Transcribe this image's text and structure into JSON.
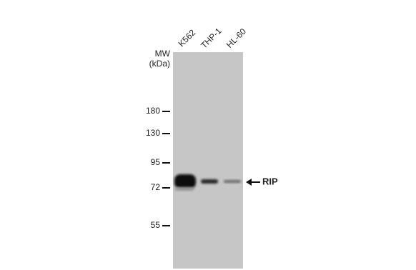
{
  "lanes": [
    "K562",
    "THP-1",
    "HL-60"
  ],
  "mw_label": {
    "line1": "MW",
    "line2": "(kDa)"
  },
  "markers": [
    "180",
    "130",
    "95",
    "72",
    "55"
  ],
  "target": "RIP"
}
